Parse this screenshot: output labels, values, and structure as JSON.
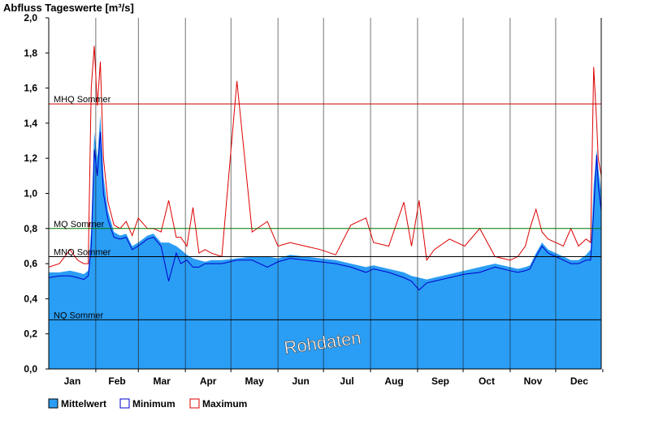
{
  "chart_data": {
    "type": "area",
    "title": "Abfluss Tageswerte [m³/s]",
    "ylim": [
      0,
      2.0
    ],
    "yticks": [
      "0,0",
      "0,2",
      "0,4",
      "0,6",
      "0,8",
      "1,0",
      "1,2",
      "1,4",
      "1,6",
      "1,8",
      "2,0"
    ],
    "months": [
      "Jan",
      "Feb",
      "Mar",
      "Apr",
      "May",
      "Jun",
      "Jul",
      "Aug",
      "Sep",
      "Oct",
      "Nov",
      "Dec"
    ],
    "grid": "vertical month lines",
    "legend": [
      {
        "name": "Mittelwert",
        "color": "#2a9df4"
      },
      {
        "name": "Minimum",
        "color": "#0000cc"
      },
      {
        "name": "Maximum",
        "color": "#dd0000"
      }
    ],
    "legend_position": "bottom-left",
    "reference_lines": [
      {
        "label": "MHQ Sommer",
        "value": 1.51,
        "color": "#cc0000"
      },
      {
        "label": "MQ Sommer",
        "value": 0.8,
        "color": "#007700"
      },
      {
        "label": "MNQ Sommer",
        "value": 0.64,
        "color": "#000000"
      },
      {
        "label": "NQ Sommer",
        "value": 0.28,
        "color": "#000000"
      }
    ],
    "watermark": "Rohdaten",
    "series": {
      "day": [
        1,
        8,
        15,
        20,
        24,
        27,
        29,
        31,
        33,
        35,
        37,
        40,
        44,
        48,
        52,
        56,
        60,
        66,
        70,
        75,
        80,
        85,
        88,
        92,
        96,
        100,
        104,
        108,
        115,
        125,
        135,
        145,
        152,
        160,
        170,
        180,
        190,
        200,
        210,
        215,
        225,
        235,
        240,
        245,
        250,
        255,
        265,
        275,
        285,
        295,
        305,
        310,
        315,
        318,
        322,
        326,
        330,
        335,
        340,
        345,
        350,
        355,
        358,
        360,
        362,
        363,
        365
      ],
      "mean": [
        0.55,
        0.55,
        0.56,
        0.55,
        0.54,
        0.56,
        0.8,
        1.35,
        1.2,
        1.45,
        1.1,
        0.9,
        0.78,
        0.76,
        0.77,
        0.7,
        0.72,
        0.76,
        0.77,
        0.72,
        0.72,
        0.7,
        0.68,
        0.65,
        0.63,
        0.62,
        0.61,
        0.62,
        0.62,
        0.63,
        0.64,
        0.64,
        0.63,
        0.65,
        0.64,
        0.63,
        0.62,
        0.6,
        0.58,
        0.59,
        0.57,
        0.55,
        0.53,
        0.52,
        0.51,
        0.52,
        0.54,
        0.56,
        0.58,
        0.6,
        0.58,
        0.57,
        0.58,
        0.59,
        0.66,
        0.72,
        0.68,
        0.66,
        0.64,
        0.62,
        0.62,
        0.65,
        0.68,
        1.05,
        1.25,
        1.15,
        1.0
      ],
      "min": [
        0.52,
        0.53,
        0.53,
        0.52,
        0.51,
        0.53,
        0.7,
        1.25,
        1.1,
        1.35,
        1.0,
        0.85,
        0.75,
        0.74,
        0.75,
        0.68,
        0.7,
        0.74,
        0.75,
        0.7,
        0.5,
        0.66,
        0.6,
        0.62,
        0.58,
        0.58,
        0.6,
        0.6,
        0.6,
        0.62,
        0.62,
        0.58,
        0.61,
        0.63,
        0.62,
        0.61,
        0.6,
        0.58,
        0.55,
        0.57,
        0.55,
        0.52,
        0.5,
        0.45,
        0.49,
        0.5,
        0.52,
        0.54,
        0.55,
        0.58,
        0.56,
        0.55,
        0.56,
        0.57,
        0.64,
        0.7,
        0.66,
        0.64,
        0.62,
        0.6,
        0.6,
        0.62,
        0.62,
        0.9,
        1.22,
        1.05,
        0.9
      ],
      "max": [
        0.58,
        0.6,
        0.68,
        0.62,
        0.6,
        0.6,
        1.6,
        1.84,
        1.5,
        1.75,
        1.2,
        0.95,
        0.82,
        0.8,
        0.84,
        0.76,
        0.86,
        0.8,
        0.8,
        0.78,
        0.96,
        0.75,
        0.75,
        0.7,
        0.92,
        0.66,
        0.68,
        0.66,
        0.64,
        1.64,
        0.78,
        0.84,
        0.7,
        0.72,
        0.7,
        0.68,
        0.65,
        0.82,
        0.86,
        0.72,
        0.7,
        0.95,
        0.7,
        0.96,
        0.62,
        0.68,
        0.74,
        0.7,
        0.8,
        0.64,
        0.62,
        0.64,
        0.7,
        0.8,
        0.91,
        0.78,
        0.74,
        0.72,
        0.7,
        0.8,
        0.7,
        0.74,
        0.72,
        1.72,
        1.4,
        1.2,
        1.1
      ]
    }
  }
}
